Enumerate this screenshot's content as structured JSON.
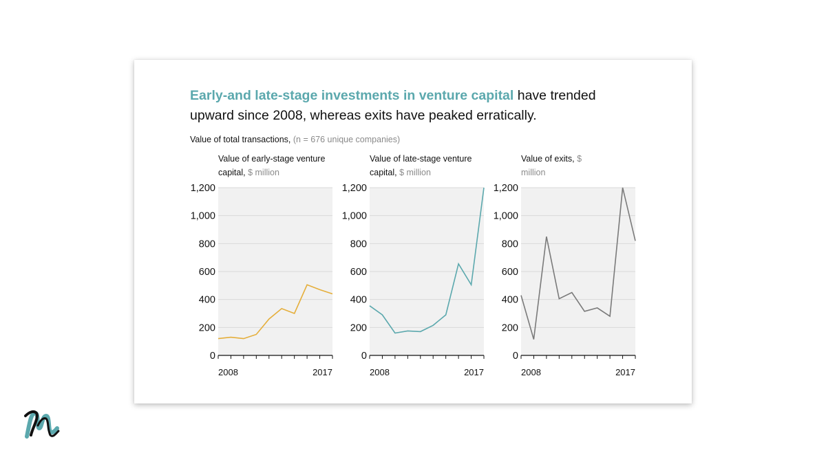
{
  "headline": {
    "highlight": "Early-and late-stage investments in venture capital",
    "rest": " have trended upward since 2008, whereas exits have peaked erratically."
  },
  "subtitle": {
    "main": "Value of total transactions,",
    "note": " (n = 676 unique companies)"
  },
  "colors": {
    "early": "#e5ae3a",
    "late": "#5ba8ad",
    "exits": "#7a7a7a",
    "plot_bg": "#f1f1f1",
    "headline_accent": "#5ba8ad"
  },
  "chart_data": [
    {
      "type": "line",
      "title_main": "Value of early-stage venture capital,",
      "title_unit": " $ million",
      "x": [
        2008,
        2009,
        2010,
        2011,
        2012,
        2013,
        2014,
        2015,
        2016,
        2017
      ],
      "values": [
        120,
        130,
        120,
        150,
        260,
        335,
        300,
        505,
        470,
        440
      ],
      "ylim": [
        0,
        1200
      ],
      "yticks": [
        0,
        200,
        400,
        600,
        800,
        1000,
        1200
      ],
      "ytick_labels": [
        "0",
        "200",
        "400",
        "600",
        "800",
        "1,000",
        "1,200"
      ],
      "xtick_labels": [
        "2008",
        "2017"
      ],
      "color_key": "early"
    },
    {
      "type": "line",
      "title_main": "Value of late-stage venture capital,",
      "title_unit": " $ million",
      "x": [
        2008,
        2009,
        2010,
        2011,
        2012,
        2013,
        2014,
        2015,
        2016,
        2017
      ],
      "values": [
        355,
        290,
        160,
        175,
        170,
        215,
        290,
        655,
        505,
        1200
      ],
      "ylim": [
        0,
        1200
      ],
      "yticks": [
        0,
        200,
        400,
        600,
        800,
        1000,
        1200
      ],
      "ytick_labels": [
        "0",
        "200",
        "400",
        "600",
        "800",
        "1,000",
        "1,200"
      ],
      "xtick_labels": [
        "2008",
        "2017"
      ],
      "color_key": "late"
    },
    {
      "type": "line",
      "title_main": "Value of exits,",
      "title_unit": " $ million",
      "x": [
        2008,
        2009,
        2010,
        2011,
        2012,
        2013,
        2014,
        2015,
        2016,
        2017
      ],
      "values": [
        430,
        115,
        850,
        405,
        450,
        315,
        340,
        280,
        1200,
        820
      ],
      "ylim": [
        0,
        1200
      ],
      "yticks": [
        0,
        200,
        400,
        600,
        800,
        1000,
        1200
      ],
      "ytick_labels": [
        "0",
        "200",
        "400",
        "600",
        "800",
        "1,000",
        "1,200"
      ],
      "xtick_labels": [
        "2008",
        "2017"
      ],
      "color_key": "exits"
    }
  ],
  "logo": {
    "icon": "brand-m-logo-icon"
  }
}
